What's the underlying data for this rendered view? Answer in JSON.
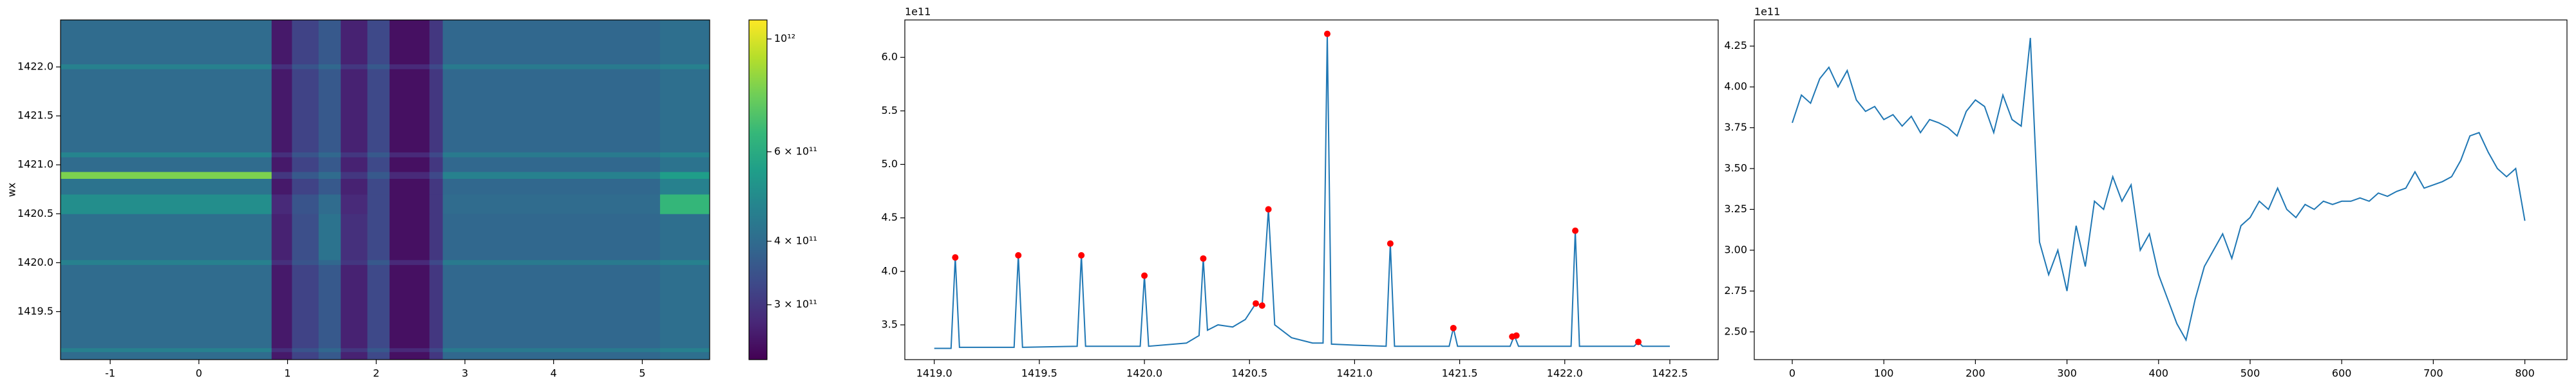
{
  "chart_data": [
    {
      "type": "heatmap",
      "ylabel": "wx",
      "xlim": [
        -1.56,
        5.76
      ],
      "ylim": [
        1419.01,
        1422.48
      ],
      "xticks": [
        -1,
        0,
        1,
        2,
        3,
        4,
        5
      ],
      "yticks": [
        1419.5,
        {
          "value": 1420.0,
          "label": "1420.0"
        },
        1420.5,
        {
          "value": 1421.0,
          "label": "1421.0"
        },
        1421.5,
        {
          "value": 1422.0,
          "label": "1422.0"
        }
      ],
      "x_edges": [
        -1.56,
        0.82,
        1.05,
        1.35,
        1.6,
        1.9,
        2.15,
        2.6,
        2.75,
        5.2,
        5.76
      ],
      "y_edges": [
        1419.01,
        1419.09,
        1419.13,
        1419.98,
        1420.03,
        1420.5,
        1420.7,
        1420.86,
        1420.93,
        1421.08,
        1421.13,
        1421.98,
        1422.03,
        1422.48
      ],
      "z": [
        [
          400000000000.0,
          260000000000.0,
          320000000000.0,
          360000000000.0,
          270000000000.0,
          330000000000.0,
          250000000000.0,
          300000000000.0,
          390000000000.0,
          410000000000.0
        ],
        [
          460000000000.0,
          290000000000.0,
          350000000000.0,
          390000000000.0,
          300000000000.0,
          360000000000.0,
          280000000000.0,
          330000000000.0,
          440000000000.0,
          460000000000.0
        ],
        [
          400000000000.0,
          260000000000.0,
          320000000000.0,
          360000000000.0,
          270000000000.0,
          330000000000.0,
          250000000000.0,
          300000000000.0,
          390000000000.0,
          410000000000.0
        ],
        [
          460000000000.0,
          290000000000.0,
          350000000000.0,
          390000000000.0,
          300000000000.0,
          360000000000.0,
          280000000000.0,
          330000000000.0,
          440000000000.0,
          460000000000.0
        ],
        [
          410000000000.0,
          270000000000.0,
          340000000000.0,
          420000000000.0,
          290000000000.0,
          330000000000.0,
          250000000000.0,
          300000000000.0,
          390000000000.0,
          410000000000.0
        ],
        [
          500000000000.0,
          280000000000.0,
          350000000000.0,
          400000000000.0,
          280000000000.0,
          330000000000.0,
          250000000000.0,
          300000000000.0,
          400000000000.0,
          650000000000.0
        ],
        [
          420000000000.0,
          260000000000.0,
          320000000000.0,
          360000000000.0,
          270000000000.0,
          330000000000.0,
          250000000000.0,
          300000000000.0,
          390000000000.0,
          460000000000.0
        ],
        [
          800000000000.0,
          300000000000.0,
          360000000000.0,
          400000000000.0,
          300000000000.0,
          360000000000.0,
          280000000000.0,
          330000000000.0,
          460000000000.0,
          550000000000.0
        ],
        [
          400000000000.0,
          260000000000.0,
          320000000000.0,
          360000000000.0,
          270000000000.0,
          330000000000.0,
          250000000000.0,
          300000000000.0,
          390000000000.0,
          420000000000.0
        ],
        [
          470000000000.0,
          290000000000.0,
          350000000000.0,
          390000000000.0,
          300000000000.0,
          360000000000.0,
          280000000000.0,
          330000000000.0,
          440000000000.0,
          470000000000.0
        ],
        [
          400000000000.0,
          260000000000.0,
          320000000000.0,
          360000000000.0,
          270000000000.0,
          330000000000.0,
          250000000000.0,
          300000000000.0,
          390000000000.0,
          410000000000.0
        ],
        [
          460000000000.0,
          290000000000.0,
          350000000000.0,
          390000000000.0,
          300000000000.0,
          360000000000.0,
          280000000000.0,
          330000000000.0,
          440000000000.0,
          460000000000.0
        ],
        [
          400000000000.0,
          260000000000.0,
          320000000000.0,
          360000000000.0,
          270000000000.0,
          330000000000.0,
          250000000000.0,
          300000000000.0,
          390000000000.0,
          410000000000.0
        ]
      ],
      "colormap": "viridis",
      "color_scale": "log",
      "clim": [
        234000000000.0,
        1090000000000.0
      ],
      "cticks": [
        {
          "value": 300000000000.0,
          "label": "3 × 10¹¹"
        },
        {
          "value": 400000000000.0,
          "label": "4 × 10¹¹"
        },
        {
          "value": 600000000000.0,
          "label": "6 × 10¹¹"
        },
        {
          "value": 1000000000000.0,
          "label": "10¹²"
        }
      ]
    },
    {
      "type": "line",
      "offset_text": "1e11",
      "xlim": [
        1418.86,
        1422.73
      ],
      "ylim": [
        3.175,
        6.35
      ],
      "xticks": [
        {
          "value": 1419.0,
          "label": "1419.0"
        },
        1419.5,
        {
          "value": 1420.0,
          "label": "1420.0"
        },
        1420.5,
        {
          "value": 1421.0,
          "label": "1421.0"
        },
        1421.5,
        {
          "value": 1422.0,
          "label": "1422.0"
        },
        1422.5
      ],
      "yticks": [
        3.5,
        {
          "value": 4.0,
          "label": "4.0"
        },
        4.5,
        {
          "value": 5.0,
          "label": "5.0"
        },
        5.5,
        {
          "value": 6.0,
          "label": "6.0"
        }
      ],
      "x": [
        1419.0,
        1419.08,
        1419.1,
        1419.12,
        1419.38,
        1419.4,
        1419.42,
        1419.68,
        1419.7,
        1419.72,
        1419.98,
        1420.0,
        1420.02,
        1420.2,
        1420.26,
        1420.28,
        1420.3,
        1420.35,
        1420.42,
        1420.48,
        1420.53,
        1420.56,
        1420.59,
        1420.62,
        1420.7,
        1420.8,
        1420.85,
        1420.87,
        1420.89,
        1421.0,
        1421.15,
        1421.17,
        1421.19,
        1421.45,
        1421.47,
        1421.49,
        1421.74,
        1421.76,
        1421.78,
        1422.03,
        1422.05,
        1422.07,
        1422.33,
        1422.35,
        1422.37,
        1422.5
      ],
      "series": [
        {
          "color": "#1f77b4",
          "values": [
            3.28,
            3.28,
            4.13,
            3.29,
            3.29,
            4.15,
            3.29,
            3.3,
            4.15,
            3.3,
            3.3,
            3.96,
            3.3,
            3.33,
            3.4,
            4.12,
            3.45,
            3.5,
            3.48,
            3.55,
            3.7,
            3.68,
            4.58,
            3.5,
            3.38,
            3.33,
            3.33,
            6.22,
            3.32,
            3.31,
            3.3,
            4.26,
            3.3,
            3.3,
            3.47,
            3.3,
            3.3,
            3.4,
            3.3,
            3.3,
            4.38,
            3.3,
            3.3,
            3.34,
            3.3,
            3.3
          ]
        }
      ],
      "markers": {
        "color": "#ff0000",
        "x": [
          1419.1,
          1419.4,
          1419.7,
          1420.0,
          1420.28,
          1420.53,
          1420.56,
          1420.59,
          1420.87,
          1421.17,
          1421.47,
          1421.75,
          1421.77,
          1422.05,
          1422.35
        ],
        "values": [
          4.13,
          4.15,
          4.15,
          3.96,
          4.12,
          3.7,
          3.68,
          4.58,
          6.22,
          4.26,
          3.47,
          3.39,
          3.4,
          4.38,
          3.34
        ]
      }
    },
    {
      "type": "line",
      "offset_text": "1e11",
      "xlim": [
        -41.5,
        846
      ],
      "ylim": [
        2.33,
        4.41
      ],
      "xticks": [
        0,
        100,
        200,
        300,
        400,
        500,
        600,
        700,
        800
      ],
      "yticks": [
        {
          "value": 2.5,
          "label": "2.50"
        },
        2.75,
        {
          "value": 3.0,
          "label": "3.00"
        },
        3.25,
        {
          "value": 3.5,
          "label": "3.50"
        },
        3.75,
        {
          "value": 4.0,
          "label": "4.00"
        },
        4.25
      ],
      "x": [
        0,
        10,
        20,
        30,
        40,
        50,
        60,
        70,
        80,
        90,
        100,
        110,
        120,
        130,
        140,
        150,
        160,
        170,
        180,
        190,
        200,
        210,
        220,
        230,
        240,
        250,
        260,
        270,
        280,
        290,
        300,
        310,
        320,
        330,
        340,
        350,
        360,
        370,
        380,
        390,
        400,
        410,
        420,
        430,
        440,
        450,
        460,
        470,
        480,
        490,
        500,
        510,
        520,
        530,
        540,
        550,
        560,
        570,
        580,
        590,
        600,
        610,
        620,
        630,
        640,
        650,
        660,
        670,
        680,
        690,
        700,
        710,
        720,
        730,
        740,
        750,
        760,
        770,
        780,
        790,
        800
      ],
      "series": [
        {
          "color": "#1f77b4",
          "values": [
            3.78,
            3.95,
            3.9,
            4.05,
            4.12,
            4.0,
            4.1,
            3.92,
            3.85,
            3.88,
            3.8,
            3.83,
            3.76,
            3.82,
            3.72,
            3.8,
            3.78,
            3.75,
            3.7,
            3.85,
            3.92,
            3.88,
            3.72,
            3.95,
            3.8,
            3.76,
            4.3,
            3.05,
            2.85,
            3.0,
            2.75,
            3.15,
            2.9,
            3.3,
            3.25,
            3.45,
            3.3,
            3.4,
            3.0,
            3.1,
            2.85,
            2.7,
            2.55,
            2.45,
            2.7,
            2.9,
            3.0,
            3.1,
            2.95,
            3.15,
            3.2,
            3.3,
            3.25,
            3.38,
            3.25,
            3.2,
            3.28,
            3.25,
            3.3,
            3.28,
            3.3,
            3.3,
            3.32,
            3.3,
            3.35,
            3.33,
            3.36,
            3.38,
            3.48,
            3.38,
            3.4,
            3.42,
            3.45,
            3.55,
            3.7,
            3.72,
            3.6,
            3.5,
            3.45,
            3.5,
            3.18
          ]
        }
      ]
    }
  ]
}
